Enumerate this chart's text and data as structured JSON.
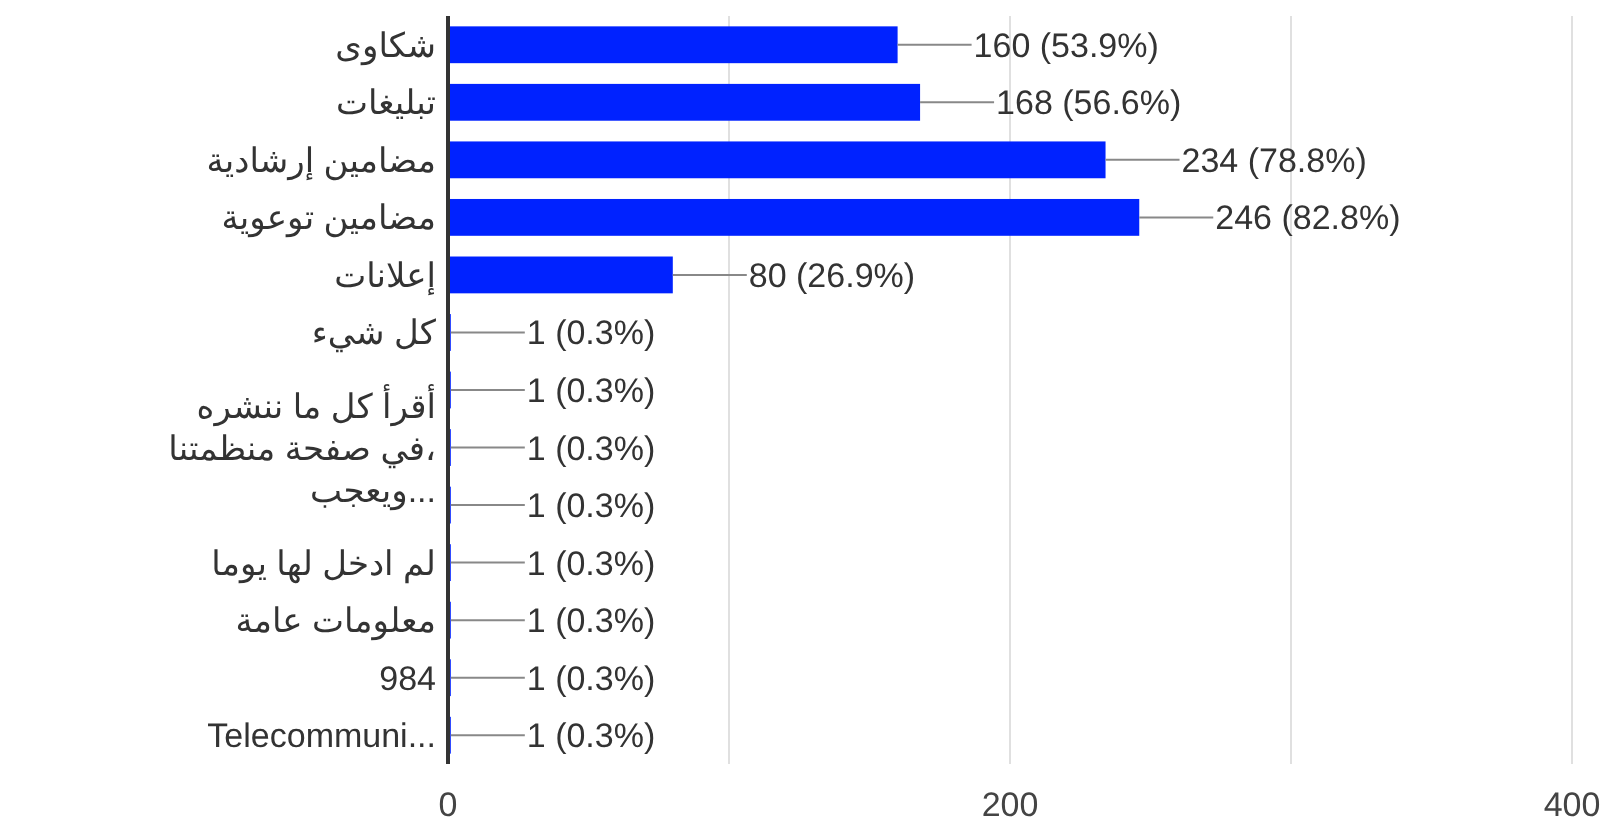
{
  "chart_data": {
    "type": "bar",
    "orientation": "horizontal",
    "categories": [
      "شكاوى",
      "تبليغات",
      "مضامين إرشادية",
      "مضامين توعوية",
      "إعلانات",
      "كل شيء",
      null,
      "أقرأ كل ما ننشره\nفي صفحة منظمتنا،\nويعجب...",
      null,
      "لم ادخل لها يوما",
      "معلومات عامة",
      "984",
      "Telecommuni..."
    ],
    "values": [
      160,
      168,
      234,
      246,
      80,
      1,
      1,
      1,
      1,
      1,
      1,
      1,
      1
    ],
    "value_labels": [
      "160 (53.9%)",
      "168 (56.6%)",
      "234 (78.8%)",
      "246 (82.8%)",
      "80 (26.9%)",
      "1 (0.3%)",
      "1 (0.3%)",
      "1 (0.3%)",
      "1 (0.3%)",
      "1 (0.3%)",
      "1 (0.3%)",
      "1 (0.3%)",
      "1 (0.3%)"
    ],
    "color": "#0022ff",
    "xlim": [
      0,
      400
    ],
    "xticks": [
      0,
      {
        "value": 100,
        "label": null
      },
      200,
      {
        "value": 300,
        "label": null
      },
      400
    ],
    "grid": "x"
  }
}
